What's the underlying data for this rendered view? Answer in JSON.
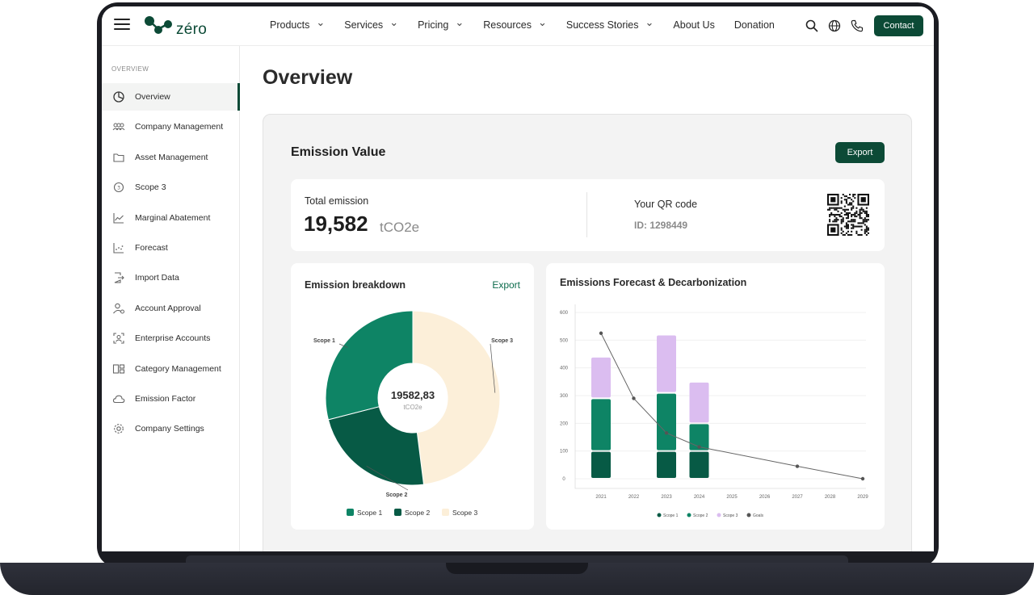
{
  "header": {
    "logo_text": "zéro",
    "nav": [
      {
        "label": "Products",
        "dropdown": true
      },
      {
        "label": "Services",
        "dropdown": true
      },
      {
        "label": "Pricing",
        "dropdown": true
      },
      {
        "label": "Resources",
        "dropdown": true
      },
      {
        "label": "Success Stories",
        "dropdown": true
      },
      {
        "label": "About Us",
        "dropdown": false
      },
      {
        "label": "Donation",
        "dropdown": false
      }
    ],
    "icons": [
      "search-icon",
      "globe-icon",
      "phone-icon"
    ],
    "contact_label": "Contact"
  },
  "sidebar": {
    "heading": "OVERVIEW",
    "items": [
      {
        "label": "Overview",
        "icon": "pie-icon",
        "active": true
      },
      {
        "label": "Company Management",
        "icon": "people-icon",
        "active": false
      },
      {
        "label": "Asset Management",
        "icon": "folder-icon",
        "active": false
      },
      {
        "label": "Scope 3",
        "icon": "cycle-icon",
        "active": false
      },
      {
        "label": "Marginal Abatement",
        "icon": "line-chart-icon",
        "active": false
      },
      {
        "label": "Forecast",
        "icon": "scatter-icon",
        "active": false
      },
      {
        "label": "Import Data",
        "icon": "import-icon",
        "active": false
      },
      {
        "label": "Account Approval",
        "icon": "user-check-icon",
        "active": false
      },
      {
        "label": "Enterprise Accounts",
        "icon": "user-frame-icon",
        "active": false
      },
      {
        "label": "Category Management",
        "icon": "category-icon",
        "active": false
      },
      {
        "label": "Emission Factor",
        "icon": "cloud-icon",
        "active": false
      },
      {
        "label": "Company Settings",
        "icon": "gear-icon",
        "active": false
      }
    ]
  },
  "main": {
    "title": "Overview",
    "panel_title": "Emission Value",
    "export_label": "Export",
    "summary": {
      "total_label": "Total emission",
      "total_value": "19,582",
      "total_unit": "tCO2e",
      "qr_label": "Your QR code",
      "qr_id": "ID: 1298449"
    },
    "breakdown": {
      "title": "Emission breakdown",
      "export_label": "Export",
      "center_value": "19582,83",
      "center_unit": "tCO2e"
    },
    "forecast": {
      "title": "Emissions Forecast & Decarbonization"
    }
  },
  "colors": {
    "brand": "#0c4a36",
    "scope1": "#0e8465",
    "scope2": "#075a45",
    "scope3_pie": "#fcefd9",
    "scope3_bar": "#dbbdf0",
    "goals": "#555555"
  },
  "chart_data": [
    {
      "type": "pie",
      "title": "Emission breakdown",
      "categories": [
        "Scope 1",
        "Scope 2",
        "Scope 3"
      ],
      "values": [
        29,
        23,
        48
      ],
      "unit": "%",
      "center_label": "19582,83",
      "legend": [
        "Scope 1",
        "Scope 2",
        "Scope 3"
      ],
      "legend_position": "bottom"
    },
    {
      "type": "bar",
      "title": "Emissions Forecast & Decarbonization",
      "categories": [
        "2021",
        "2022",
        "2023",
        "2024",
        "2025",
        "2026",
        "2027",
        "2028",
        "2029"
      ],
      "series": [
        {
          "name": "Scope 1",
          "values": [
            100,
            0,
            100,
            100,
            0,
            0,
            0,
            0,
            0
          ]
        },
        {
          "name": "Scope 2",
          "values": [
            190,
            0,
            210,
            100,
            0,
            0,
            0,
            0,
            0
          ]
        },
        {
          "name": "Scope 3",
          "values": [
            150,
            0,
            210,
            150,
            0,
            0,
            0,
            0,
            0
          ]
        },
        {
          "name": "Goals",
          "type": "line",
          "values": [
            525,
            290,
            165,
            115,
            null,
            null,
            45,
            null,
            0
          ]
        }
      ],
      "stacked": true,
      "ylim": [
        0,
        600
      ],
      "yticks": [
        0,
        100,
        200,
        300,
        400,
        500,
        600
      ],
      "legend": [
        "Scope 1",
        "Scope 2",
        "Scope 3",
        "Goals"
      ],
      "legend_position": "bottom"
    }
  ]
}
